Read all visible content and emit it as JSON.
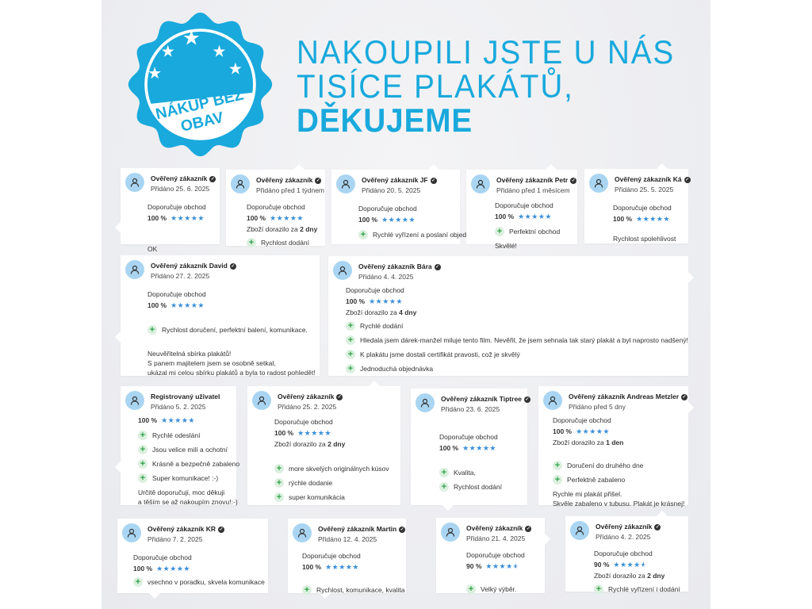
{
  "badge": {
    "line1": "NÁKUP BEZ",
    "line2": "OBAV",
    "color": "#19a9dc",
    "stars": 5
  },
  "headline": {
    "line1": "NAKOUPILI JSTE U NÁS",
    "line2": "TISÍCE PLAKÁTŮ,",
    "line3": "DĚKUJEME"
  },
  "colors": {
    "accent": "#19a9dc",
    "star": "#3b8fd9",
    "plus": "#2fa24a",
    "avatar": "#a9d5f2"
  },
  "reviews": [
    {
      "name": "Ověřený zákazník",
      "verified": true,
      "date": "Přidáno 25. 6. 2025",
      "recommend": "Doporučuje obchod",
      "rating": "100 %",
      "stars": 5,
      "pros": [],
      "text": [
        "OK"
      ]
    },
    {
      "name": "Ověřený zákazník",
      "verified": true,
      "date": "Přidáno před 1 týdnem",
      "recommend": "Doporučuje obchod",
      "rating": "100 %",
      "stars": 5,
      "delivery_prefix": "Zboží dorazilo za",
      "delivery_value": "2 dny",
      "pros": [
        "Rychlost dodání"
      ],
      "text": []
    },
    {
      "name": "Ověřený zákazník JF",
      "verified": true,
      "date": "Přidáno 20. 5. 2025",
      "recommend": "Doporučuje obchod",
      "rating": "100 %",
      "stars": 5,
      "pros": [
        "Rychlé vyřízení a poslaní objednávky"
      ],
      "text": []
    },
    {
      "name": "Ověřený zákazník Petr",
      "verified": true,
      "date": "Přidáno před 1 měsícem",
      "recommend": "Doporučuje obchod",
      "rating": "100 %",
      "stars": 5,
      "pros": [
        "Perfektní obchod"
      ],
      "text": [
        "Skvělé!"
      ]
    },
    {
      "name": "Ověřený zákazník Ká",
      "verified": true,
      "date": "Přidáno 25. 5. 2025",
      "recommend": "Doporučuje obchod",
      "rating": "100 %",
      "stars": 5,
      "pros": [],
      "text": [
        "Rychlost spolehlivost"
      ]
    },
    {
      "name": "Ověřený zákazník David",
      "verified": true,
      "date": "Přidáno 27. 2. 2025",
      "recommend": "Doporučuje obchod",
      "rating": "100 %",
      "stars": 5,
      "pros": [
        "Rychlost doručení, perfektní balení, komunikace."
      ],
      "text": [
        "Neuvěřitelná sbírka plakátů!",
        "S panem majitelem jsem se osobně setkal,",
        "ukázal mi celou sbírku plakátů a byla to radost pohledět!"
      ]
    },
    {
      "name": "Ověřený zákazník Bára",
      "verified": true,
      "date": "Přidáno 4. 4. 2025",
      "recommend": "Doporučuje obchod",
      "rating": "100 %",
      "stars": 5,
      "delivery_prefix": "Zboží dorazilo za",
      "delivery_value": "4 dny",
      "pros": [
        "Rychlé dodání",
        "Hledala jsem dárek-manžel miluje tento film. Nevěřil, že jsem sehnala tak starý plakát a byl naprosto nadšený!",
        "K plakátu jsme dostali certifikát pravosti, což je skvělý",
        "Jednoduchá objednávka"
      ],
      "text": []
    },
    {
      "name": "Registrovaný uživatel",
      "verified": false,
      "date": "Přidáno 5. 2. 2025",
      "rating": "100 %",
      "stars": 5,
      "pros": [
        "Rychlé odeslání",
        "Jsou velice milí a ochotní",
        "Krásně a bezpečně zabaleno",
        "Super komunikace! :-)"
      ],
      "text": [
        "Určitě doporučuji, moc děkuji",
        "a těším se až nakoupím znovu!:-)"
      ]
    },
    {
      "name": "Ověřený zákazník",
      "verified": true,
      "date": "Přidáno 25. 2. 2025",
      "recommend": "Doporučuje obchod",
      "rating": "100 %",
      "stars": 5,
      "delivery_prefix": "Zboží dorazilo za",
      "delivery_value": "2 dny",
      "pros": [
        "more skvelých originálnych kúsov",
        "rýchle dodanie",
        "super komunikácia"
      ],
      "text": []
    },
    {
      "name": "Ověřený zákazník Tiptree",
      "verified": true,
      "date": "Přidáno 23. 6. 2025",
      "recommend": "Doporučuje obchod",
      "rating": "100 %",
      "stars": 5,
      "pros": [
        "Kvalita,",
        "Rychlost dodání"
      ],
      "text": []
    },
    {
      "name": "Ověřený zákazník Andreas Metzler",
      "verified": true,
      "date": "Přidáno před 5 dny",
      "recommend": "Doporučuje obchod",
      "rating": "100 %",
      "stars": 5,
      "delivery_prefix": "Zboží dorazilo za",
      "delivery_value": "1 den",
      "pros": [
        "Doručení do druhého dne",
        "Perfektně zabaleno"
      ],
      "text": [
        "Rychle mi plakát přišel.",
        "Skvěle zabaleno v tubusu. Plakát je krásnej!"
      ]
    },
    {
      "name": "Ověřený zákazník KR",
      "verified": true,
      "date": "Přidáno 7. 2. 2025",
      "recommend": "Doporučuje obchod",
      "rating": "100 %",
      "stars": 5,
      "pros": [
        "vsechno v poradku, skvela komunikace"
      ],
      "text": []
    },
    {
      "name": "Ověřený zákazník Martin",
      "verified": true,
      "date": "Přidáno 12. 4. 2025",
      "recommend": "Doporučuje obchod",
      "rating": "100 %",
      "stars": 5,
      "pros": [
        "Rychlost, komunikace, kvalita"
      ],
      "text": []
    },
    {
      "name": "Ověřený zákazník",
      "verified": true,
      "date": "Přidáno 21. 4. 2025",
      "recommend": "Doporučuje obchod",
      "rating": "90 %",
      "stars": 4.5,
      "pros": [
        "Velký výběr."
      ],
      "text": []
    },
    {
      "name": "Ověřený zákazník",
      "verified": true,
      "date": "Přidáno 4. 2. 2025",
      "recommend": "Doporučuje obchod",
      "rating": "90 %",
      "stars": 4.5,
      "delivery_prefix": "Zboží dorazilo za",
      "delivery_value": "2 dny",
      "pros": [
        "Rychlé vyřízení i dodání"
      ],
      "text": []
    }
  ]
}
